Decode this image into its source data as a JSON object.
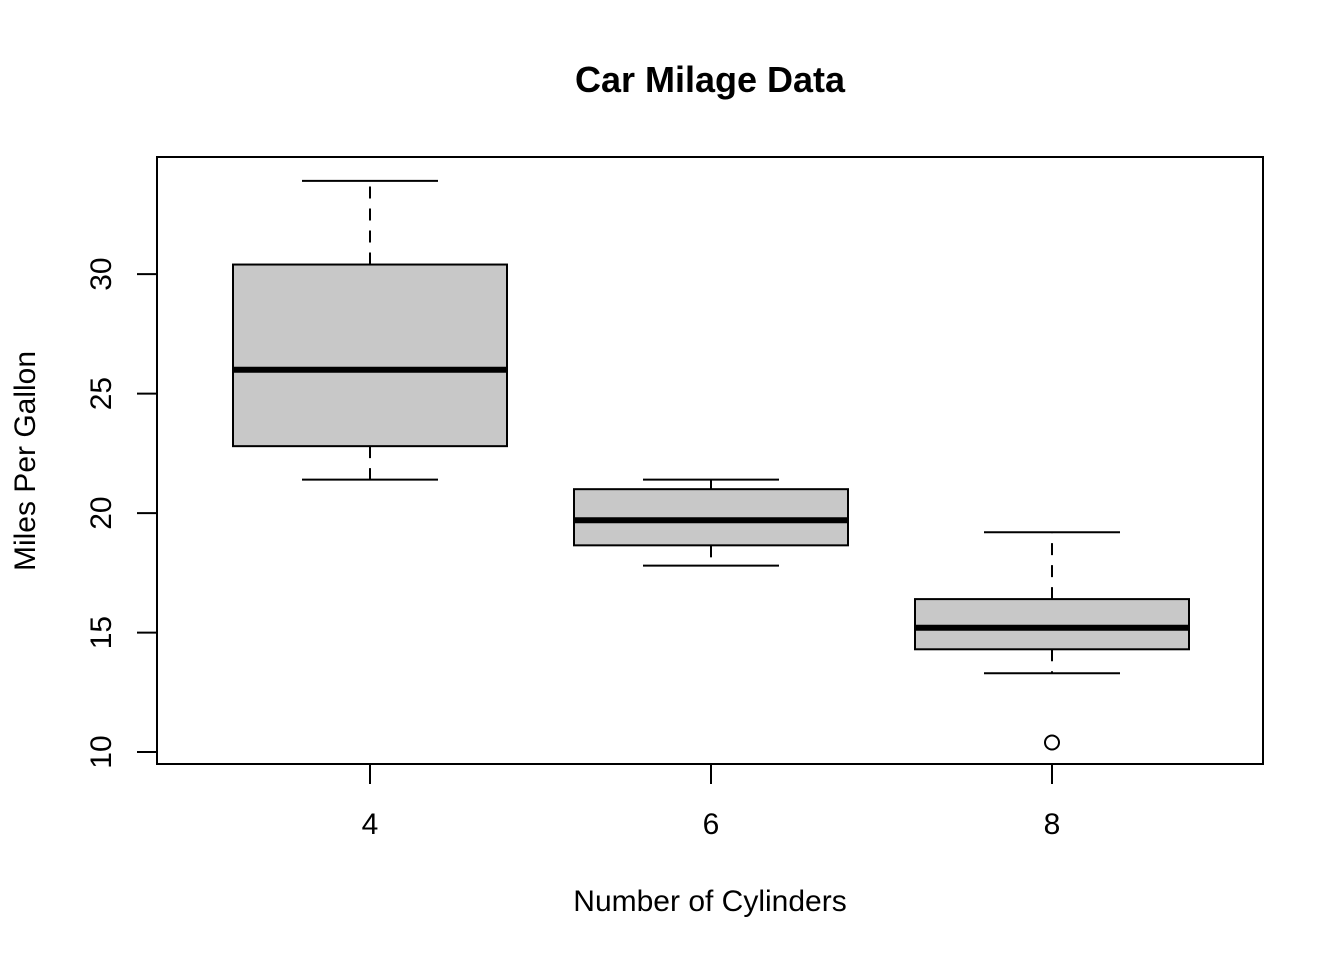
{
  "chart_data": {
    "type": "boxplot",
    "title": "Car Milage Data",
    "xlabel": "Number of Cylinders",
    "ylabel": "Miles Per Gallon",
    "categories": [
      "4",
      "6",
      "8"
    ],
    "x_tick_labels": [
      "4",
      "6",
      "8"
    ],
    "y_ticks": [
      10,
      15,
      20,
      25,
      30
    ],
    "y_tick_labels": [
      "10",
      "15",
      "20",
      "25",
      "30"
    ],
    "ylim": [
      9.5,
      34.9
    ],
    "grid": false,
    "boxes": [
      {
        "category": "4",
        "whisker_low": 21.4,
        "q1": 22.8,
        "median": 26.0,
        "q3": 30.4,
        "whisker_high": 33.9,
        "outliers": []
      },
      {
        "category": "6",
        "whisker_low": 17.8,
        "q1": 18.65,
        "median": 19.7,
        "q3": 21.0,
        "whisker_high": 21.4,
        "outliers": []
      },
      {
        "category": "8",
        "whisker_low": 13.3,
        "q1": 14.3,
        "median": 15.2,
        "q3": 16.4,
        "whisker_high": 19.2,
        "outliers": [
          10.4
        ]
      }
    ],
    "colors": {
      "box_fill": "#c8c8c8",
      "line": "#000000",
      "background": "#ffffff"
    }
  }
}
